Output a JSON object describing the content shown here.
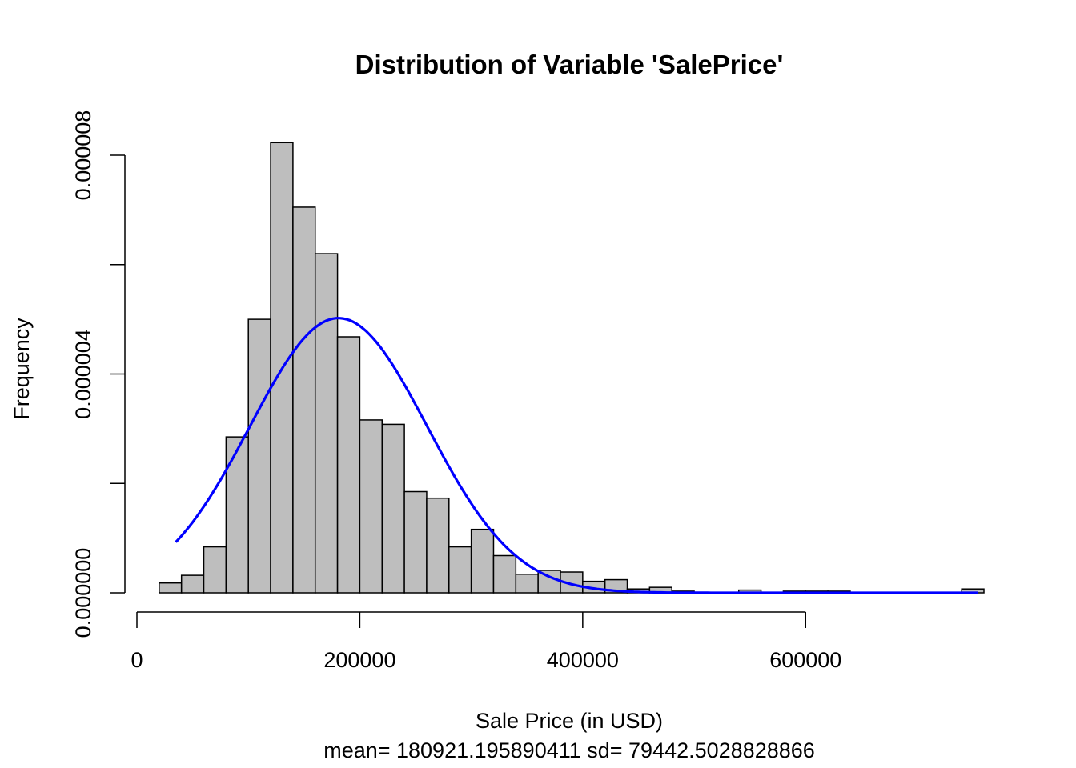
{
  "chart_data": {
    "type": "bar",
    "title": "Distribution of Variable 'SalePrice'",
    "xlabel": "Sale Price (in USD)",
    "subtitle": "mean= 180921.195890411  sd= 79442.5028828866",
    "ylabel": "Frequency",
    "xlim": [
      0,
      760000
    ],
    "ylim": [
      0,
      8e-06
    ],
    "x_ticks": [
      0,
      200000,
      400000,
      600000
    ],
    "x_tick_labels": [
      "0",
      "200000",
      "400000",
      "600000"
    ],
    "y_ticks": [
      0,
      2e-06,
      4e-06,
      6e-06,
      8e-06
    ],
    "y_tick_labels": [
      "0.000000",
      "",
      "0.000004",
      "",
      "0.000008"
    ],
    "grid": false,
    "bin_width": 20000,
    "bins": [
      {
        "x0": 20000,
        "x1": 40000,
        "y": 1.8e-07
      },
      {
        "x0": 40000,
        "x1": 60000,
        "y": 3.2e-07
      },
      {
        "x0": 60000,
        "x1": 80000,
        "y": 8.4e-07
      },
      {
        "x0": 80000,
        "x1": 100000,
        "y": 2.85e-06
      },
      {
        "x0": 100000,
        "x1": 120000,
        "y": 5e-06
      },
      {
        "x0": 120000,
        "x1": 140000,
        "y": 8.23e-06
      },
      {
        "x0": 140000,
        "x1": 160000,
        "y": 7.05e-06
      },
      {
        "x0": 160000,
        "x1": 180000,
        "y": 6.2e-06
      },
      {
        "x0": 180000,
        "x1": 200000,
        "y": 4.68e-06
      },
      {
        "x0": 200000,
        "x1": 220000,
        "y": 3.16e-06
      },
      {
        "x0": 220000,
        "x1": 240000,
        "y": 3.08e-06
      },
      {
        "x0": 240000,
        "x1": 260000,
        "y": 1.85e-06
      },
      {
        "x0": 260000,
        "x1": 280000,
        "y": 1.73e-06
      },
      {
        "x0": 280000,
        "x1": 300000,
        "y": 8.4e-07
      },
      {
        "x0": 300000,
        "x1": 320000,
        "y": 1.16e-06
      },
      {
        "x0": 320000,
        "x1": 340000,
        "y": 6.8e-07
      },
      {
        "x0": 340000,
        "x1": 360000,
        "y": 3.4e-07
      },
      {
        "x0": 360000,
        "x1": 380000,
        "y": 4.1e-07
      },
      {
        "x0": 380000,
        "x1": 400000,
        "y": 3.8e-07
      },
      {
        "x0": 400000,
        "x1": 420000,
        "y": 2.1e-07
      },
      {
        "x0": 420000,
        "x1": 440000,
        "y": 2.4e-07
      },
      {
        "x0": 440000,
        "x1": 460000,
        "y": 7e-08
      },
      {
        "x0": 460000,
        "x1": 480000,
        "y": 1e-07
      },
      {
        "x0": 480000,
        "x1": 500000,
        "y": 3e-08
      },
      {
        "x0": 540000,
        "x1": 560000,
        "y": 5e-08
      },
      {
        "x0": 580000,
        "x1": 600000,
        "y": 3e-08
      },
      {
        "x0": 600000,
        "x1": 620000,
        "y": 3e-08
      },
      {
        "x0": 620000,
        "x1": 640000,
        "y": 3e-08
      },
      {
        "x0": 740000,
        "x1": 760000,
        "y": 7e-08
      }
    ],
    "normal_curve": {
      "mean": 180921.195890411,
      "sd": 79442.5028828866,
      "x_range": [
        34900,
        755000
      ],
      "color": "#0000ff"
    },
    "bar_fill": "#bebebe",
    "bar_stroke": "#000000"
  }
}
